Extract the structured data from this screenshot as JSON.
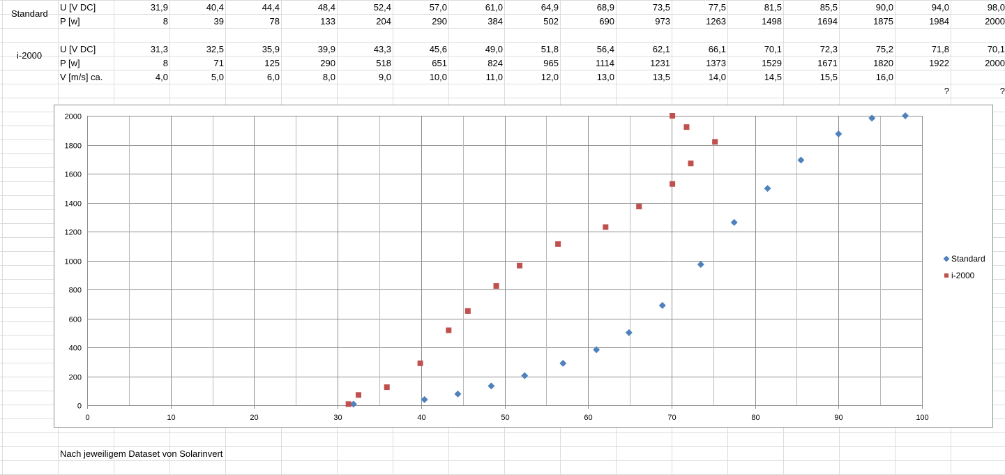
{
  "table": {
    "standard": {
      "label": "Standard",
      "u_label": "U [V DC]",
      "p_label": "P [w]",
      "u": [
        "31,9",
        "40,4",
        "44,4",
        "48,4",
        "52,4",
        "57,0",
        "61,0",
        "64,9",
        "68,9",
        "73,5",
        "77,5",
        "81,5",
        "85,5",
        "90,0",
        "94,0",
        "98,0"
      ],
      "p": [
        "8",
        "39",
        "78",
        "133",
        "204",
        "290",
        "384",
        "502",
        "690",
        "973",
        "1263",
        "1498",
        "1694",
        "1875",
        "1984",
        "2000"
      ]
    },
    "i2000": {
      "label": "i-2000",
      "u_label": "U [V DC]",
      "p_label": "P [w]",
      "v_label": "V [m/s] ca.",
      "u": [
        "31,3",
        "32,5",
        "35,9",
        "39,9",
        "43,3",
        "45,6",
        "49,0",
        "51,8",
        "56,4",
        "62,1",
        "66,1",
        "70,1",
        "72,3",
        "75,2",
        "71,8",
        "70,1"
      ],
      "p": [
        "8",
        "71",
        "125",
        "290",
        "518",
        "651",
        "824",
        "965",
        "1114",
        "1231",
        "1373",
        "1529",
        "1671",
        "1820",
        "1922",
        "2000"
      ],
      "v": [
        "4,0",
        "5,0",
        "6,0",
        "8,0",
        "9,0",
        "10,0",
        "11,0",
        "12,0",
        "13,0",
        "13,5",
        "14,0",
        "14,5",
        "15,5",
        "16,0",
        "",
        ""
      ],
      "q": [
        "",
        "",
        "",
        "",
        "",
        "",
        "",
        "",
        "",
        "",
        "",
        "",
        "",
        "",
        "?",
        "?"
      ]
    },
    "note": "Nach jeweiligem Dataset von Solarinvert"
  },
  "chart_data": {
    "type": "scatter",
    "xlim": [
      0,
      100
    ],
    "ylim": [
      0,
      2000
    ],
    "x_ticks": [
      0,
      10,
      20,
      30,
      40,
      50,
      60,
      70,
      80,
      90,
      100
    ],
    "y_ticks": [
      0,
      200,
      400,
      600,
      800,
      1000,
      1200,
      1400,
      1600,
      1800,
      2000
    ],
    "grid": true,
    "legend_position": "right",
    "series": [
      {
        "name": "Standard",
        "color": "#4f81bd",
        "marker": "diamond",
        "x": [
          31.9,
          40.4,
          44.4,
          48.4,
          52.4,
          57.0,
          61.0,
          64.9,
          68.9,
          73.5,
          77.5,
          81.5,
          85.5,
          90.0,
          94.0,
          98.0
        ],
        "y": [
          8,
          39,
          78,
          133,
          204,
          290,
          384,
          502,
          690,
          973,
          1263,
          1498,
          1694,
          1875,
          1984,
          2000
        ]
      },
      {
        "name": "i-2000",
        "color": "#c0504d",
        "marker": "square",
        "x": [
          31.3,
          32.5,
          35.9,
          39.9,
          43.3,
          45.6,
          49.0,
          51.8,
          56.4,
          62.1,
          66.1,
          70.1,
          72.3,
          75.2,
          71.8,
          70.1
        ],
        "y": [
          8,
          71,
          125,
          290,
          518,
          651,
          824,
          965,
          1114,
          1231,
          1373,
          1529,
          1671,
          1820,
          1922,
          2000
        ]
      }
    ]
  }
}
